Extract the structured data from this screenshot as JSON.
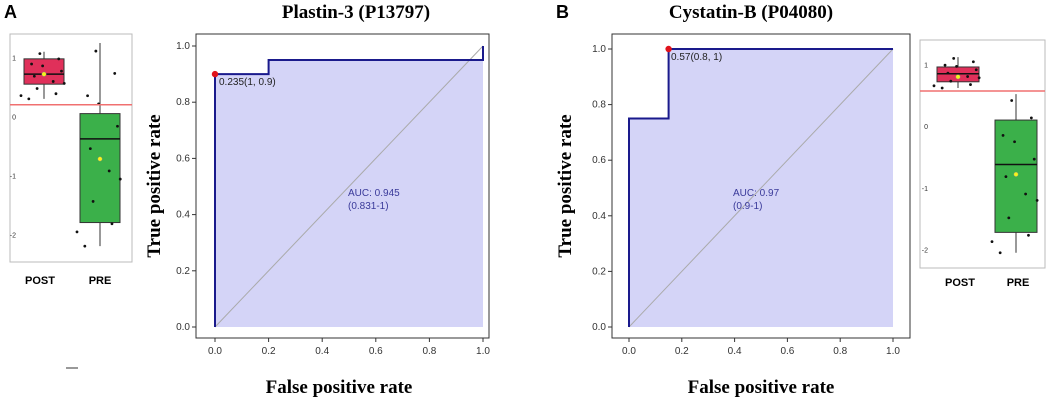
{
  "panel_labels": [
    "A",
    "B"
  ],
  "chart_data": [
    {
      "type": "line",
      "subtype": "roc",
      "title": "Plastin-3 (P13797)",
      "xlabel": "False positive rate",
      "ylabel": "True positive rate",
      "xlim": [
        0,
        1
      ],
      "ylim": [
        0,
        1
      ],
      "xticks": [
        "0.0",
        "0.2",
        "0.4",
        "0.6",
        "0.8",
        "1.0"
      ],
      "yticks": [
        "0.0",
        "0.2",
        "0.4",
        "0.6",
        "0.8",
        "1.0"
      ],
      "series": [
        {
          "name": "ROC",
          "color": "#1a1a8c",
          "fill": "#d4d4f7",
          "x": [
            0,
            0,
            0.2,
            0.2,
            1,
            1
          ],
          "y": [
            0,
            0.9,
            0.9,
            0.95,
            0.95,
            1
          ]
        }
      ],
      "diagonal": true,
      "cutoff_point": {
        "x": 0,
        "y": 0.9,
        "label": "0.235(1, 0.9)",
        "color": "#e0131c"
      },
      "auc_label": "AUC: 0.945",
      "auc_ci": "(0.831-1)"
    },
    {
      "type": "line",
      "subtype": "roc",
      "title": "Cystatin-B (P04080)",
      "xlabel": "False positive rate",
      "ylabel": "True positive rate",
      "xlim": [
        0,
        1
      ],
      "ylim": [
        0,
        1
      ],
      "xticks": [
        "0.0",
        "0.2",
        "0.4",
        "0.6",
        "0.8",
        "1.0"
      ],
      "yticks": [
        "0.0",
        "0.2",
        "0.4",
        "0.6",
        "0.8",
        "1.0"
      ],
      "series": [
        {
          "name": "ROC",
          "color": "#1a1a8c",
          "fill": "#d4d4f7",
          "x": [
            0,
            0,
            0.15,
            0.15,
            1
          ],
          "y": [
            0,
            0.75,
            0.75,
            1,
            1
          ]
        }
      ],
      "diagonal": true,
      "cutoff_point": {
        "x": 0.15,
        "y": 1,
        "label": "0.57(0.8, 1)",
        "color": "#e0131c"
      },
      "auc_label": "AUC: 0.97",
      "auc_ci": "(0.9-1)"
    },
    {
      "type": "box",
      "title": "",
      "categories": [
        "POST",
        "PRE"
      ],
      "ylim": [
        -2.3,
        1.3
      ],
      "yticks": [
        "1",
        "0",
        "-1",
        "-2"
      ],
      "threshold": 0.2,
      "boxes": [
        {
          "category": "POST",
          "color": "#e0305a",
          "q1": 0.55,
          "median": 0.72,
          "q3": 0.98,
          "min": 0.3,
          "max": 1.1,
          "mean": 0.72
        },
        {
          "category": "PRE",
          "color": "#3bb04a",
          "q1": -1.8,
          "median": -0.38,
          "q3": 0.05,
          "min": -2.2,
          "max": 1.25,
          "mean": -0.72
        }
      ]
    },
    {
      "type": "box",
      "title": "",
      "categories": [
        "POST",
        "PRE"
      ],
      "ylim": [
        -2.2,
        1.3
      ],
      "yticks": [
        "1",
        "0",
        "-1",
        "-2"
      ],
      "threshold": 0.57,
      "boxes": [
        {
          "category": "POST",
          "color": "#e0305a",
          "q1": 0.72,
          "median": 0.85,
          "q3": 0.96,
          "min": 0.62,
          "max": 1.12,
          "mean": 0.8
        },
        {
          "category": "PRE",
          "color": "#3bb04a",
          "q1": -1.72,
          "median": -0.62,
          "q3": 0.1,
          "min": -2.05,
          "max": 0.52,
          "mean": -0.78
        }
      ]
    }
  ]
}
